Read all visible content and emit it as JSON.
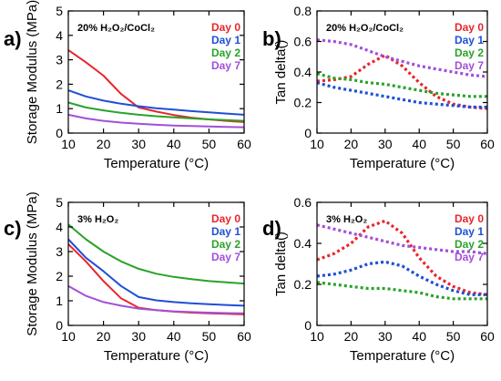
{
  "chart_data": [
    {
      "type": "line",
      "panel_label": "a)",
      "annotation": "20% H₂O₂/CoCl₂",
      "xlabel": "Temperature (°C)",
      "ylabel": "Storage Modulus (MPa)",
      "xlim": [
        10,
        60
      ],
      "ylim": [
        0,
        5
      ],
      "xticks": [
        10,
        20,
        30,
        40,
        50,
        60
      ],
      "yticks": [
        0,
        1,
        2,
        3,
        4,
        5
      ],
      "grid": false,
      "legend_position": "top-right",
      "line_style": "solid",
      "x": [
        10,
        15,
        20,
        25,
        30,
        35,
        40,
        45,
        50,
        55,
        60
      ],
      "series": [
        {
          "name": "Day 0",
          "color": "#e8262b",
          "values": [
            3.4,
            2.9,
            2.35,
            1.6,
            1.05,
            0.88,
            0.74,
            0.63,
            0.56,
            0.5,
            0.45
          ]
        },
        {
          "name": "Day 1",
          "color": "#1f4fd6",
          "values": [
            1.75,
            1.5,
            1.33,
            1.2,
            1.1,
            1.02,
            0.96,
            0.9,
            0.85,
            0.8,
            0.75
          ]
        },
        {
          "name": "Day 2",
          "color": "#2aa22a",
          "values": [
            1.25,
            1.05,
            0.93,
            0.83,
            0.75,
            0.69,
            0.64,
            0.6,
            0.56,
            0.53,
            0.5
          ]
        },
        {
          "name": "Day 7",
          "color": "#a24fd8",
          "values": [
            0.75,
            0.6,
            0.5,
            0.43,
            0.38,
            0.34,
            0.31,
            0.29,
            0.27,
            0.25,
            0.24
          ]
        }
      ]
    },
    {
      "type": "line",
      "panel_label": "b)",
      "annotation": "20% H₂O₂/CoCl₂",
      "xlabel": "Temperature (°C)",
      "ylabel": "Tan delta()",
      "xlim": [
        10,
        60
      ],
      "ylim": [
        0,
        0.8
      ],
      "xticks": [
        10,
        20,
        30,
        40,
        50,
        60
      ],
      "yticks": [
        0,
        0.2,
        0.4,
        0.6,
        0.8
      ],
      "grid": false,
      "legend_position": "top-right",
      "line_style": "dotted",
      "x": [
        10,
        15,
        20,
        25,
        30,
        35,
        40,
        45,
        50,
        55,
        60
      ],
      "series": [
        {
          "name": "Day 0",
          "color": "#e8262b",
          "values": [
            0.34,
            0.35,
            0.37,
            0.45,
            0.51,
            0.44,
            0.33,
            0.24,
            0.19,
            0.17,
            0.16
          ]
        },
        {
          "name": "Day 1",
          "color": "#1f4fd6",
          "values": [
            0.33,
            0.3,
            0.28,
            0.26,
            0.24,
            0.22,
            0.2,
            0.19,
            0.18,
            0.17,
            0.17
          ]
        },
        {
          "name": "Day 2",
          "color": "#2aa22a",
          "values": [
            0.39,
            0.36,
            0.35,
            0.33,
            0.32,
            0.3,
            0.28,
            0.26,
            0.25,
            0.24,
            0.24
          ]
        },
        {
          "name": "Day 7",
          "color": "#a24fd8",
          "values": [
            0.61,
            0.6,
            0.58,
            0.54,
            0.5,
            0.47,
            0.44,
            0.42,
            0.4,
            0.38,
            0.37
          ]
        }
      ]
    },
    {
      "type": "line",
      "panel_label": "c)",
      "annotation": "3% H₂O₂",
      "xlabel": "Temperature (°C)",
      "ylabel": "Storage Modulus (MPa)",
      "xlim": [
        10,
        60
      ],
      "ylim": [
        0,
        5
      ],
      "xticks": [
        10,
        20,
        30,
        40,
        50,
        60
      ],
      "yticks": [
        0,
        1,
        2,
        3,
        4,
        5
      ],
      "grid": false,
      "legend_position": "top-right",
      "line_style": "solid",
      "x": [
        10,
        15,
        20,
        25,
        30,
        35,
        40,
        45,
        50,
        55,
        60
      ],
      "series": [
        {
          "name": "Day 0",
          "color": "#e8262b",
          "values": [
            3.3,
            2.6,
            1.8,
            1.1,
            0.72,
            0.62,
            0.56,
            0.52,
            0.49,
            0.47,
            0.45
          ]
        },
        {
          "name": "Day 1",
          "color": "#1f4fd6",
          "values": [
            3.5,
            2.75,
            2.2,
            1.6,
            1.15,
            1.02,
            0.95,
            0.9,
            0.86,
            0.83,
            0.8
          ]
        },
        {
          "name": "Day 2",
          "color": "#2aa22a",
          "values": [
            4.1,
            3.5,
            3.0,
            2.6,
            2.3,
            2.1,
            1.97,
            1.88,
            1.8,
            1.75,
            1.7
          ]
        },
        {
          "name": "Day 7",
          "color": "#a24fd8",
          "values": [
            1.6,
            1.2,
            0.95,
            0.8,
            0.68,
            0.62,
            0.57,
            0.54,
            0.52,
            0.5,
            0.49
          ]
        }
      ]
    },
    {
      "type": "line",
      "panel_label": "d)",
      "annotation": "3% H₂O₂",
      "xlabel": "Temperature (°C)",
      "ylabel": "Tan delta()",
      "xlim": [
        10,
        60
      ],
      "ylim": [
        0,
        0.6
      ],
      "xticks": [
        10,
        20,
        30,
        40,
        50,
        60
      ],
      "yticks": [
        0,
        0.2,
        0.4,
        0.6
      ],
      "grid": false,
      "legend_position": "top-right",
      "line_style": "dotted",
      "x": [
        10,
        15,
        20,
        25,
        30,
        35,
        40,
        45,
        50,
        55,
        60
      ],
      "series": [
        {
          "name": "Day 0",
          "color": "#e8262b",
          "values": [
            0.32,
            0.35,
            0.4,
            0.48,
            0.51,
            0.45,
            0.33,
            0.24,
            0.19,
            0.16,
            0.15
          ]
        },
        {
          "name": "Day 1",
          "color": "#1f4fd6",
          "values": [
            0.24,
            0.25,
            0.27,
            0.3,
            0.31,
            0.29,
            0.24,
            0.2,
            0.17,
            0.15,
            0.15
          ]
        },
        {
          "name": "Day 2",
          "color": "#2aa22a",
          "values": [
            0.21,
            0.2,
            0.19,
            0.18,
            0.18,
            0.17,
            0.16,
            0.14,
            0.13,
            0.13,
            0.13
          ]
        },
        {
          "name": "Day 7",
          "color": "#a24fd8",
          "values": [
            0.49,
            0.47,
            0.45,
            0.43,
            0.41,
            0.39,
            0.38,
            0.37,
            0.36,
            0.36,
            0.35
          ]
        }
      ]
    }
  ]
}
